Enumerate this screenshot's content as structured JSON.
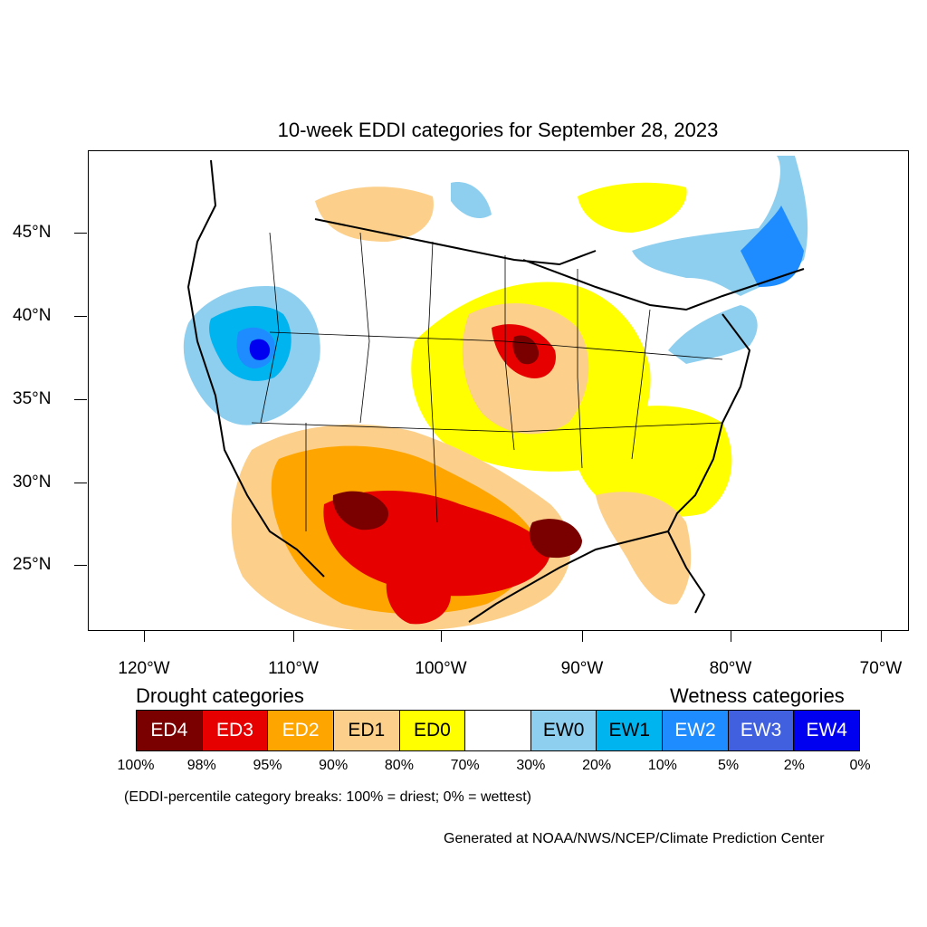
{
  "title": "10-week EDDI categories for September 28, 2023",
  "lat_labels": [
    "45°N",
    "40°N",
    "35°N",
    "30°N",
    "25°N"
  ],
  "lon_labels": [
    "120°W",
    "110°W",
    "100°W",
    "90°W",
    "80°W",
    "70°W"
  ],
  "legend": {
    "drought_heading": "Drought categories",
    "wetness_heading": "Wetness categories",
    "categories": [
      {
        "label": "ED4",
        "color": "#7a0000",
        "text_color": "#ffffff"
      },
      {
        "label": "ED3",
        "color": "#e60000",
        "text_color": "#ffffff"
      },
      {
        "label": "ED2",
        "color": "#ffa500",
        "text_color": "#ffffff"
      },
      {
        "label": "ED1",
        "color": "#fcd08a",
        "text_color": "#000000"
      },
      {
        "label": "ED0",
        "color": "#ffff00",
        "text_color": "#000000"
      },
      {
        "label": "",
        "color": "#ffffff",
        "text_color": "#000000"
      },
      {
        "label": "EW0",
        "color": "#8ecfef",
        "text_color": "#000000"
      },
      {
        "label": "EW1",
        "color": "#00b4f0",
        "text_color": "#000000"
      },
      {
        "label": "EW2",
        "color": "#1e8cff",
        "text_color": "#ffffff"
      },
      {
        "label": "EW3",
        "color": "#4060e0",
        "text_color": "#ffffff"
      },
      {
        "label": "EW4",
        "color": "#0000f0",
        "text_color": "#ffffff"
      }
    ],
    "breaks": [
      "100%",
      "98%",
      "95%",
      "90%",
      "80%",
      "70%",
      "30%",
      "20%",
      "10%",
      "5%",
      "2%",
      "0%"
    ]
  },
  "breaks_note": "(EDDI-percentile category breaks: 100% = driest; 0% = wettest)",
  "credit": "Generated at NOAA/NWS/NCEP/Climate Prediction Center"
}
